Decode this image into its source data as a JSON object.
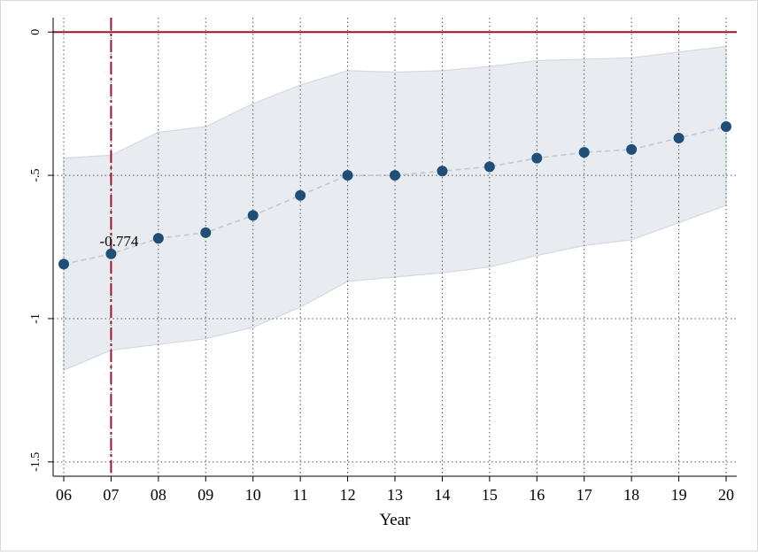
{
  "chart_data": {
    "type": "line",
    "title": "",
    "xlabel": "Year",
    "ylabel": "",
    "x": [
      "06",
      "07",
      "08",
      "09",
      "10",
      "11",
      "12",
      "13",
      "14",
      "15",
      "16",
      "17",
      "18",
      "19",
      "20"
    ],
    "series": [
      {
        "values": [
          -0.81,
          -0.774,
          -0.72,
          -0.7,
          -0.64,
          -0.57,
          -0.5,
          -0.5,
          -0.485,
          -0.47,
          -0.44,
          -0.42,
          -0.41,
          -0.37,
          -0.33
        ],
        "ci_lower": [
          -1.18,
          -1.11,
          -1.09,
          -1.07,
          -1.03,
          -0.96,
          -0.87,
          -0.855,
          -0.84,
          -0.82,
          -0.78,
          -0.745,
          -0.725,
          -0.665,
          -0.605
        ],
        "ci_upper": [
          -0.44,
          -0.43,
          -0.35,
          -0.33,
          -0.25,
          -0.185,
          -0.135,
          -0.14,
          -0.135,
          -0.12,
          -0.1,
          -0.095,
          -0.09,
          -0.07,
          -0.05
        ]
      }
    ],
    "ylim": [
      -1.55,
      0.05
    ],
    "yticks": [
      0,
      -0.5,
      -1,
      -1.5
    ],
    "ytick_labels": [
      "0",
      "-.5",
      "-1",
      "-1.5"
    ],
    "reference_line_y": 0,
    "reference_line_x": "07",
    "annotation": {
      "x": "07",
      "text": "-0.774"
    },
    "grid": true,
    "colors": {
      "point": "#1f4e79",
      "connector": "#c0c8d2",
      "ci_fill": "#e8ecf1",
      "ci_edge": "#d2d9e2",
      "ref_line": "#a0102a",
      "grid": "#555555"
    }
  }
}
